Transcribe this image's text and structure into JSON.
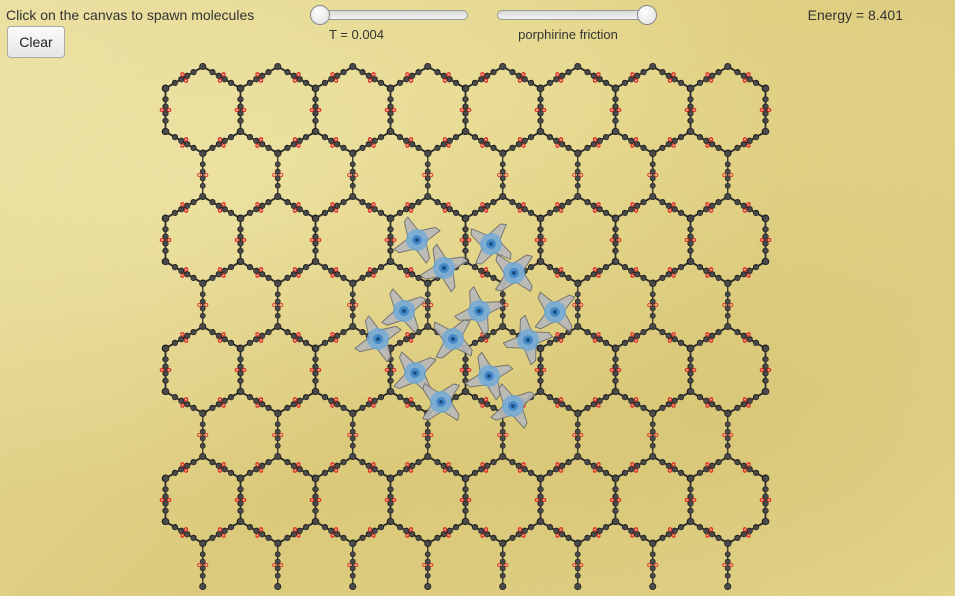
{
  "instruction": "Click on the canvas to spawn molecules",
  "clear_button": "Clear",
  "temperature_slider": {
    "label": "T = 0.004",
    "value_fraction": 0.0
  },
  "friction_slider": {
    "label": "porphirine friction",
    "value_fraction": 1.0
  },
  "energy": "Energy = 8.401",
  "colors": {
    "background": "#e3d58e",
    "framework_node": "#4a4a4a",
    "carboxyl_oxygen": "#e03030",
    "porphyrin_body": "#b9b9b9",
    "porphyrin_core": "#6aa8dc"
  }
}
